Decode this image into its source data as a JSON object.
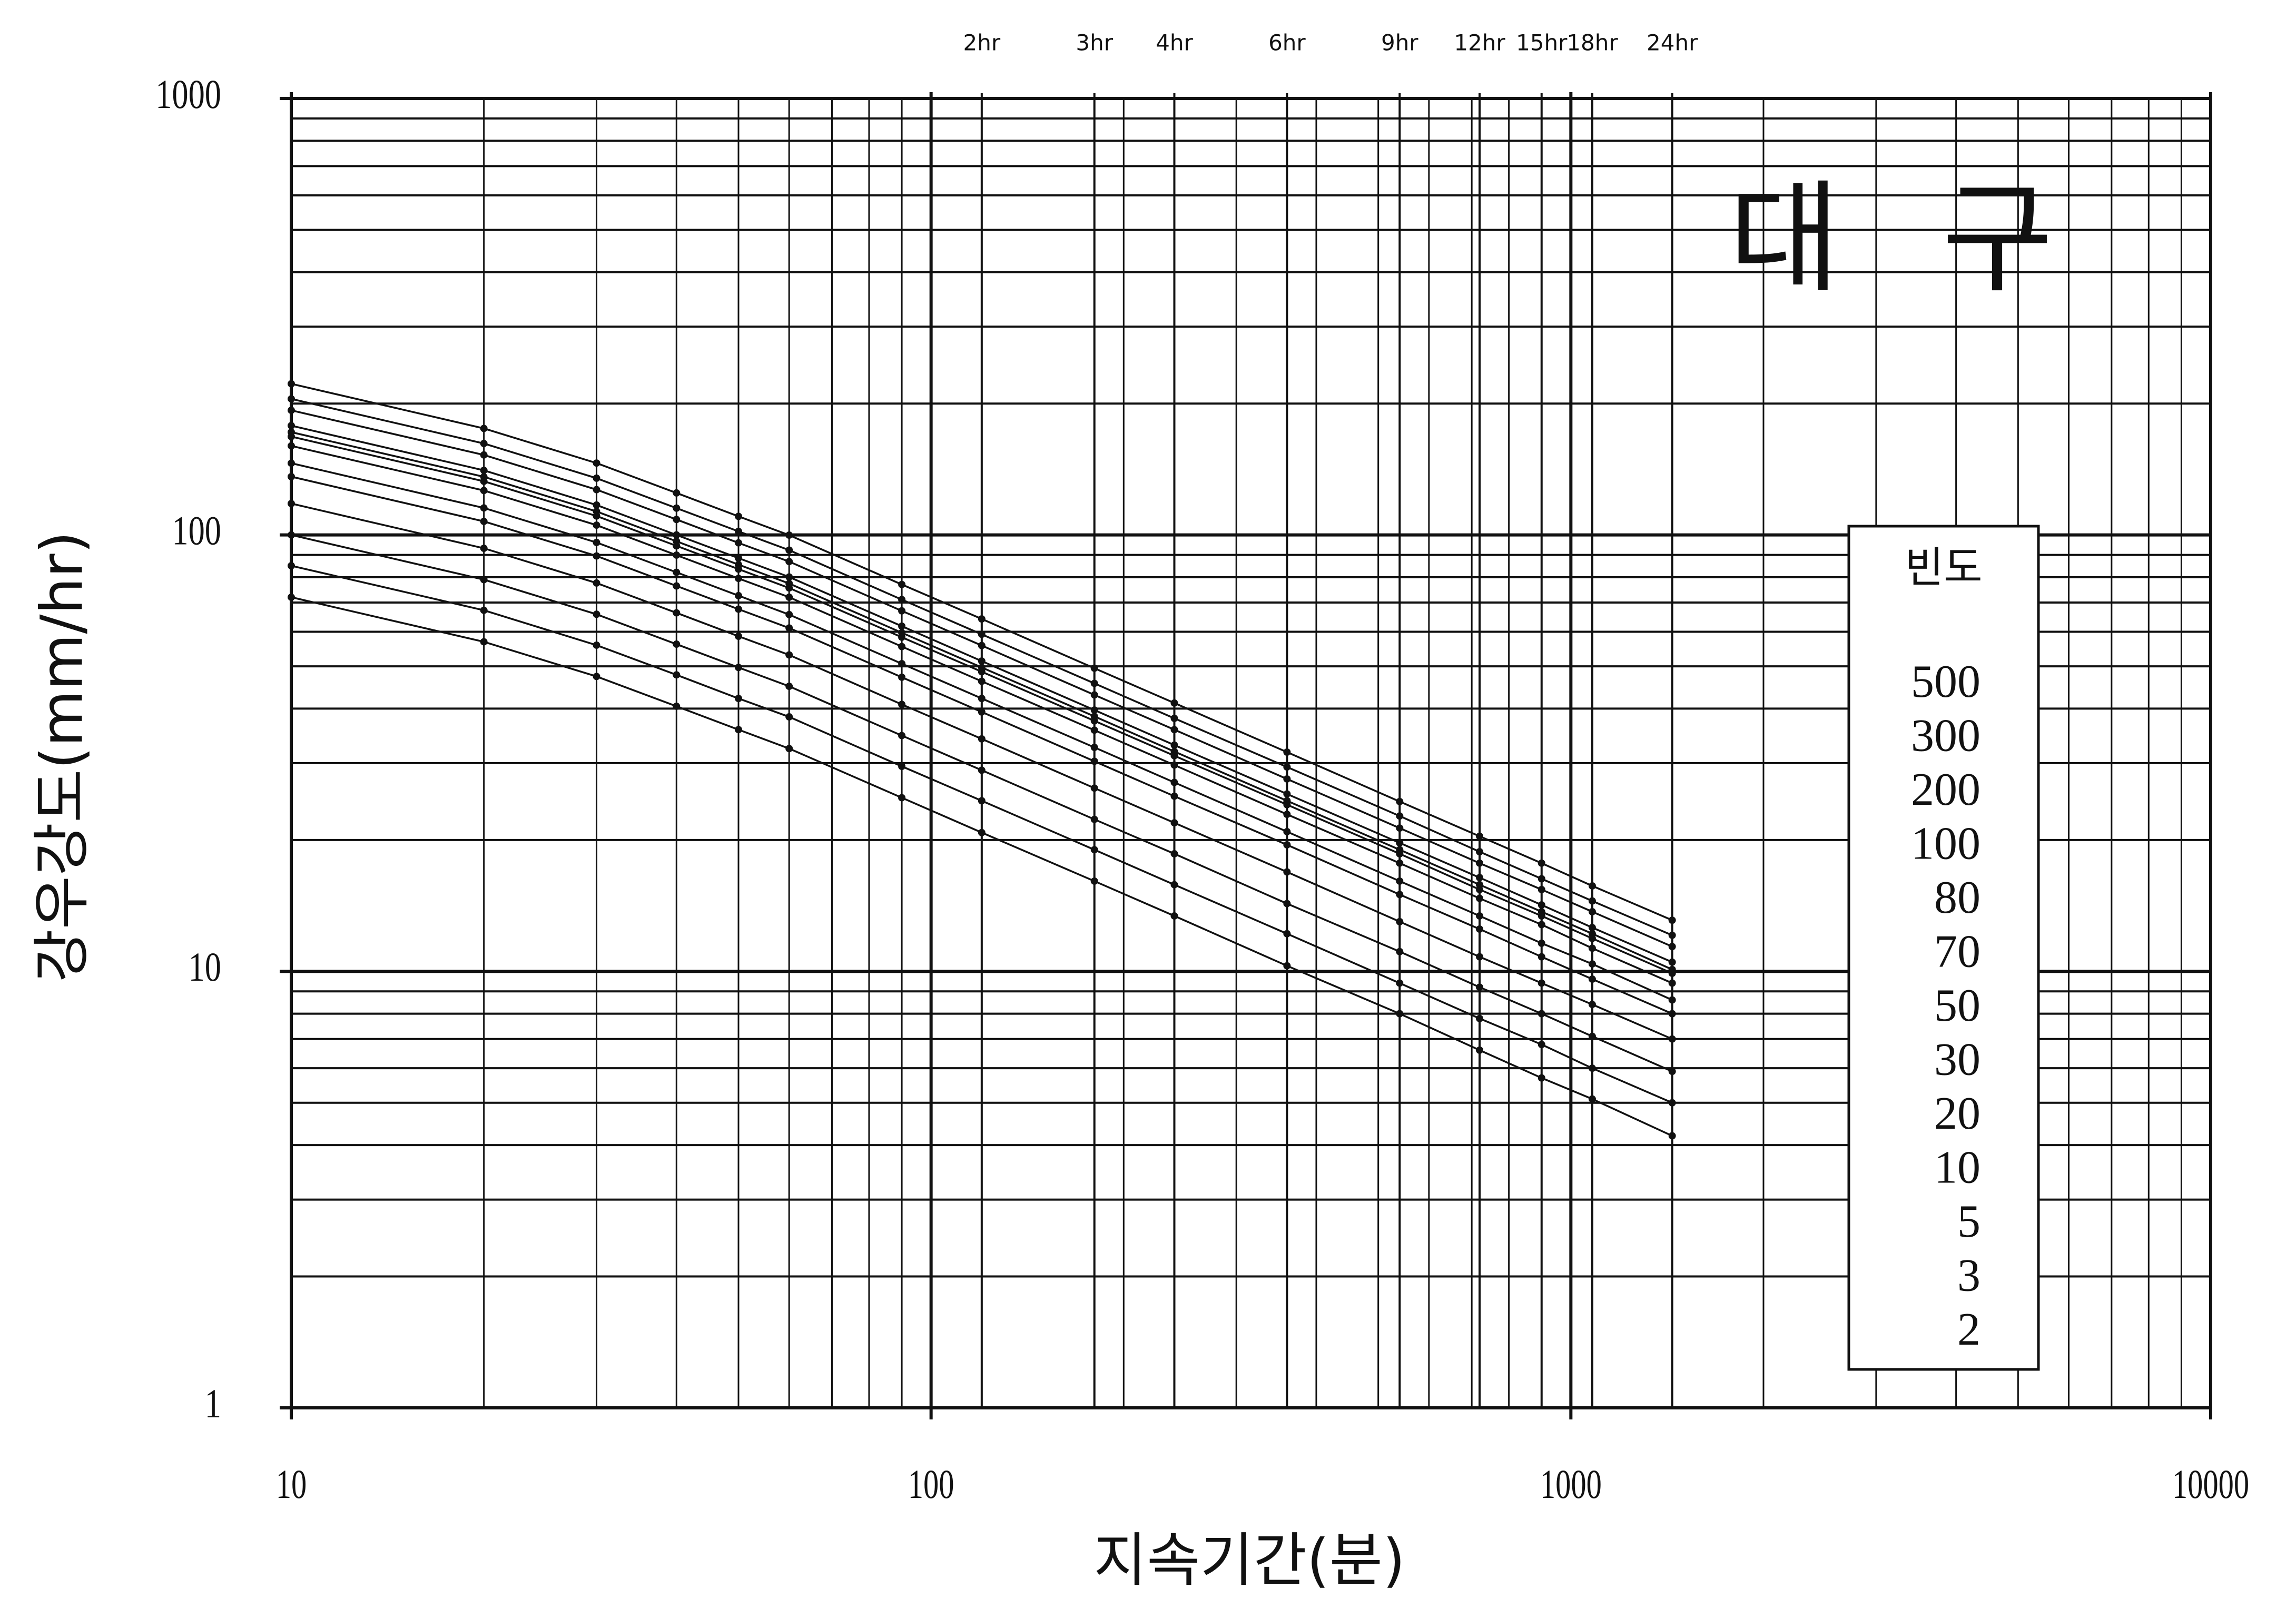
{
  "chart_data": {
    "type": "line",
    "title": "대 구",
    "x_label": "지속기간(분)",
    "y_label": "강우강도(mm/hr)",
    "x_log": true,
    "y_log": true,
    "grid": true,
    "color": "#111111",
    "legend_title": "빈도",
    "legend_position": "right",
    "x": [
      10,
      20,
      30,
      40,
      50,
      60,
      90,
      120,
      180,
      240,
      360,
      540,
      720,
      900,
      1080,
      1440
    ],
    "xlim": [
      10,
      10000
    ],
    "xticks": [
      10,
      100,
      1000,
      10000
    ],
    "ylim": [
      1,
      1000
    ],
    "yticks": [
      1,
      10,
      100,
      1000
    ],
    "minor_xticks": [
      20,
      30,
      40,
      50,
      60,
      70,
      80,
      90,
      200,
      300,
      400,
      500,
      600,
      700,
      800,
      900,
      2000,
      3000,
      4000,
      5000,
      6000,
      7000,
      8000,
      9000
    ],
    "minor_yticks": [
      2,
      3,
      4,
      5,
      6,
      7,
      8,
      9,
      20,
      30,
      40,
      50,
      60,
      70,
      80,
      90,
      200,
      300,
      400,
      500,
      600,
      700,
      800,
      900
    ],
    "top_ticks": [
      {
        "value": 120,
        "label": "2hr"
      },
      {
        "value": 180,
        "label": "3hr"
      },
      {
        "value": 240,
        "label": "4hr"
      },
      {
        "value": 360,
        "label": "6hr"
      },
      {
        "value": 540,
        "label": "9hr"
      },
      {
        "value": 720,
        "label": "12hr"
      },
      {
        "value": 900,
        "label": "15hr"
      },
      {
        "value": 1080,
        "label": "18hr"
      },
      {
        "value": 1440,
        "label": "24hr"
      }
    ],
    "series": [
      {
        "name": "500",
        "values": [
          222,
          175.4,
          146.1,
          124.8,
          110.3,
          99.9,
          77.0,
          64.2,
          49.5,
          41.2,
          31.8,
          24.5,
          20.4,
          17.7,
          15.7,
          13.1
        ]
      },
      {
        "name": "300",
        "values": [
          205,
          162.0,
          134.9,
          115.2,
          101.9,
          92.3,
          71.1,
          59.2,
          45.7,
          38.0,
          29.4,
          22.7,
          18.8,
          16.3,
          14.5,
          12.1
        ]
      },
      {
        "name": "200",
        "values": [
          193,
          152.5,
          127.0,
          108.5,
          95.9,
          86.9,
          67.0,
          55.8,
          43.0,
          35.8,
          27.6,
          21.3,
          17.7,
          15.4,
          13.7,
          11.4
        ]
      },
      {
        "name": "100",
        "values": [
          178,
          140.6,
          117.1,
          100.0,
          88.5,
          80.1,
          61.8,
          51.4,
          39.7,
          33.0,
          25.5,
          19.7,
          16.4,
          14.2,
          12.6,
          10.5
        ]
      },
      {
        "name": "80",
        "values": [
          172,
          135.9,
          113.2,
          96.7,
          85.5,
          77.4,
          59.7,
          49.7,
          38.4,
          31.9,
          24.6,
          19.0,
          15.8,
          13.7,
          12.2,
          10.1
        ]
      },
      {
        "name": "70",
        "values": [
          168,
          132.7,
          110.5,
          94.4,
          83.5,
          75.6,
          58.3,
          48.6,
          37.5,
          31.2,
          24.1,
          18.6,
          15.4,
          13.4,
          11.9,
          9.9
        ]
      },
      {
        "name": "50",
        "values": [
          160,
          126.4,
          105.3,
          89.9,
          79.5,
          72.0,
          55.5,
          46.2,
          35.7,
          29.7,
          22.9,
          17.7,
          14.7,
          12.8,
          11.3,
          9.4
        ]
      },
      {
        "name": "30",
        "values": [
          146,
          115.3,
          96.1,
          82.1,
          72.6,
          65.7,
          50.7,
          42.2,
          32.6,
          27.1,
          20.9,
          16.1,
          13.4,
          11.6,
          10.4,
          8.6
        ]
      },
      {
        "name": "20",
        "values": [
          136,
          107.4,
          89.5,
          76.4,
          67.6,
          61.2,
          47.2,
          39.3,
          30.3,
          25.2,
          19.5,
          15.0,
          12.5,
          10.8,
          9.6,
          8.0
        ]
      },
      {
        "name": "10",
        "values": [
          118,
          93.2,
          77.6,
          66.3,
          58.6,
          53.1,
          40.9,
          34.1,
          26.3,
          21.9,
          16.9,
          13.0,
          10.8,
          9.4,
          8.4,
          7.0
        ]
      },
      {
        "name": "5",
        "values": [
          100,
          79.0,
          65.8,
          56.2,
          49.7,
          45.0,
          34.7,
          28.9,
          22.3,
          18.6,
          14.3,
          11.1,
          9.2,
          8.0,
          7.1,
          5.9
        ]
      },
      {
        "name": "3",
        "values": [
          85,
          67.2,
          55.9,
          47.8,
          42.2,
          38.3,
          29.5,
          24.6,
          19.0,
          15.8,
          12.2,
          9.4,
          7.8,
          6.8,
          6.0,
          5.0
        ]
      },
      {
        "name": "2",
        "values": [
          72,
          56.9,
          47.4,
          40.5,
          35.8,
          32.4,
          25.0,
          20.8,
          16.1,
          13.4,
          10.3,
          8.0,
          6.6,
          5.7,
          5.1,
          4.2
        ]
      }
    ]
  }
}
